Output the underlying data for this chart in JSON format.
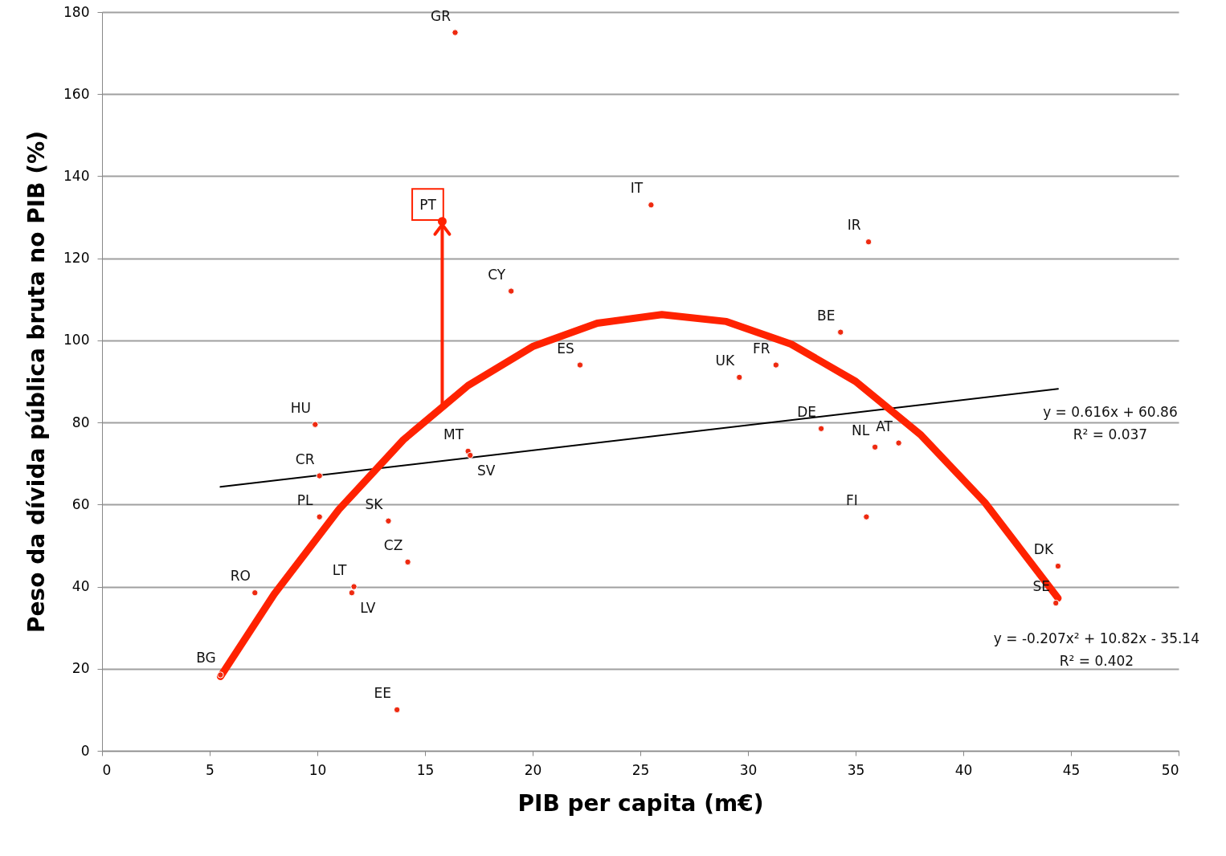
{
  "chart_data": {
    "type": "scatter",
    "xlabel": "PIB per capita (m€)",
    "ylabel": "Peso da dívida pública bruta no PIB (%)",
    "xlim": [
      0,
      50
    ],
    "xticks": [
      0,
      5,
      10,
      15,
      20,
      25,
      30,
      35,
      40,
      45,
      50
    ],
    "ylim": [
      0,
      180
    ],
    "yticks": [
      0,
      20,
      40,
      60,
      80,
      100,
      120,
      140,
      160,
      180
    ],
    "grid": "y",
    "marker": "circle",
    "series": [
      {
        "type": "line",
        "marker": "none",
        "color": "#000000",
        "x": [
          5.5,
          44.4
        ],
        "values": [
          64.3,
          88.2
        ]
      },
      {
        "type": "line",
        "marker": "none",
        "color": "#ff2200",
        "x": [
          5.5,
          8,
          11,
          14,
          17,
          20,
          23,
          26,
          29,
          32,
          35,
          38,
          41,
          44.4
        ],
        "values": [
          18.1,
          38.2,
          58.8,
          75.8,
          89.0,
          98.5,
          104.2,
          106.3,
          104.6,
          99.1,
          90.0,
          77.1,
          60.5,
          37.2
        ]
      },
      {
        "color": "#ee2a10",
        "x": [
          15.8,
          16.4,
          25.5,
          35.6,
          19.0,
          34.3,
          22.2,
          31.3,
          29.6,
          9.9,
          33.4,
          17.0,
          17.1,
          37.0,
          35.9,
          10.1,
          10.1,
          35.5,
          13.3,
          14.2,
          44.4,
          44.3,
          11.7,
          11.6,
          7.1,
          5.5,
          13.7
        ],
        "values": [
          129,
          175,
          133,
          124,
          112,
          102,
          94,
          94,
          91,
          79.5,
          78.5,
          73,
          72,
          75,
          74,
          67,
          57,
          57,
          56,
          46,
          45,
          36,
          40,
          38.5,
          38.5,
          18.5,
          10
        ]
      }
    ],
    "annotations": [
      {
        "text": "PT",
        "x": 15.8,
        "y": 129
      },
      {
        "text": "GR",
        "x": 16.4,
        "y": 175
      },
      {
        "text": "IT",
        "x": 25.5,
        "y": 133
      },
      {
        "text": "IR",
        "x": 35.6,
        "y": 124
      },
      {
        "text": "CY",
        "x": 19.0,
        "y": 112
      },
      {
        "text": "BE",
        "x": 34.3,
        "y": 102
      },
      {
        "text": "ES",
        "x": 22.2,
        "y": 94
      },
      {
        "text": "FR",
        "x": 31.3,
        "y": 94
      },
      {
        "text": "UK",
        "x": 29.6,
        "y": 91
      },
      {
        "text": "HU",
        "x": 9.9,
        "y": 79.5
      },
      {
        "text": "DE",
        "x": 33.4,
        "y": 78.5
      },
      {
        "text": "MT",
        "x": 17.0,
        "y": 73
      },
      {
        "text": "SV",
        "x": 17.1,
        "y": 72
      },
      {
        "text": "AT",
        "x": 37.0,
        "y": 75
      },
      {
        "text": "NL",
        "x": 35.9,
        "y": 74
      },
      {
        "text": "CR",
        "x": 10.1,
        "y": 67
      },
      {
        "text": "PL",
        "x": 10.1,
        "y": 57
      },
      {
        "text": "FI",
        "x": 35.5,
        "y": 57
      },
      {
        "text": "SK",
        "x": 13.3,
        "y": 56
      },
      {
        "text": "CZ",
        "x": 14.2,
        "y": 46
      },
      {
        "text": "DK",
        "x": 44.4,
        "y": 45
      },
      {
        "text": "SE",
        "x": 44.3,
        "y": 36
      },
      {
        "text": "LT",
        "x": 11.7,
        "y": 40
      },
      {
        "text": "LV",
        "x": 11.6,
        "y": 38.5
      },
      {
        "text": "RO",
        "x": 7.1,
        "y": 38.5
      },
      {
        "text": "BG",
        "x": 5.5,
        "y": 18.5
      },
      {
        "text": "EE",
        "x": 13.7,
        "y": 10
      },
      "y = 0.616x + 60.86",
      "R² = 0.037",
      "y = -0.207x² + 10.82x - 35.14",
      "R² = 0.402"
    ]
  }
}
